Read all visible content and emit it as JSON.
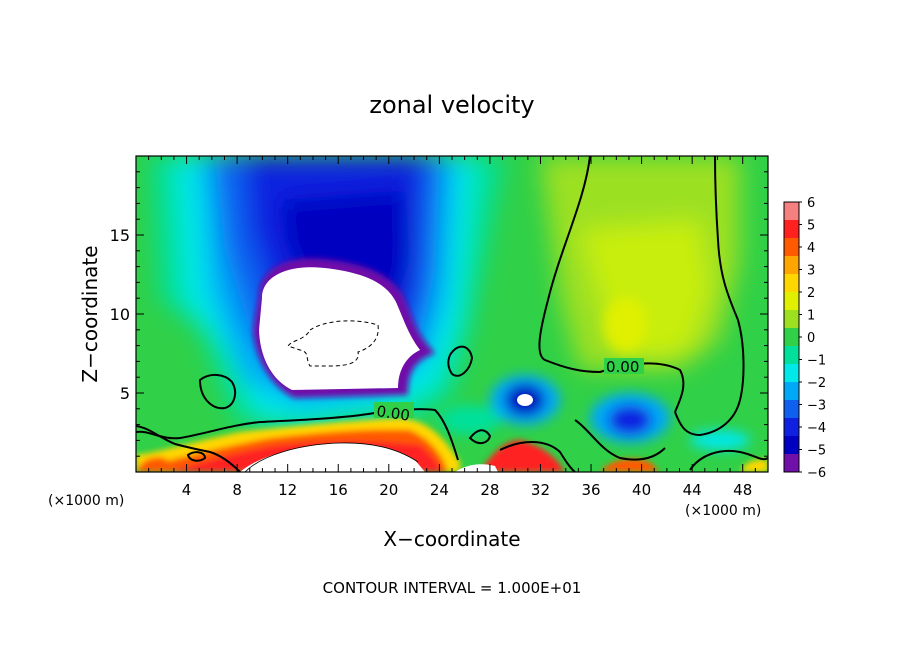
{
  "chart_data": {
    "type": "heatmap",
    "title": "zonal velocity",
    "xlabel": "X−coordinate",
    "ylabel": "Z−coordinate",
    "x_unit_left": "(×1000 m)",
    "x_unit_right": "(×1000 m)",
    "xlim": [
      0,
      50
    ],
    "ylim": [
      0,
      20
    ],
    "x_ticks": [
      4,
      8,
      12,
      16,
      20,
      24,
      28,
      32,
      36,
      40,
      44,
      48
    ],
    "y_ticks": [
      5,
      10,
      15
    ],
    "colorbar": {
      "labels": [
        "6",
        "5",
        "4",
        "3",
        "2",
        "1",
        "0",
        "−1",
        "−2",
        "−3",
        "−4",
        "−5",
        "−6"
      ],
      "colors": [
        "#f48080",
        "#ff2020",
        "#ff5a00",
        "#ffa500",
        "#ffd700",
        "#e0f000",
        "#9ce020",
        "#30d048",
        "#00e09a",
        "#00e8e8",
        "#00a8f8",
        "#1060f0",
        "#1020e0",
        "#0000c0",
        "#7010a8"
      ]
    },
    "contour_labels": [
      "0.00",
      "0.00"
    ],
    "footer": "CONTOUR INTERVAL = 1.000E+01"
  }
}
